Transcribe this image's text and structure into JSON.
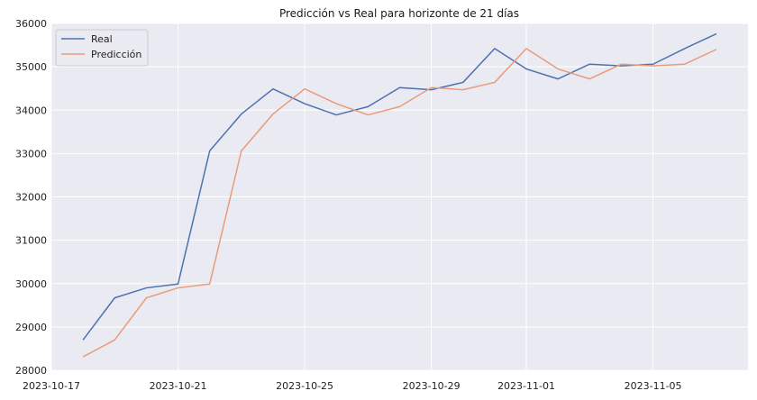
{
  "chart_data": {
    "type": "line",
    "title": "Predicción vs Real para horizonte de 21 días",
    "xlabel": "",
    "ylabel": "",
    "x": [
      "2023-10-18",
      "2023-10-19",
      "2023-10-20",
      "2023-10-21",
      "2023-10-22",
      "2023-10-23",
      "2023-10-24",
      "2023-10-25",
      "2023-10-26",
      "2023-10-27",
      "2023-10-28",
      "2023-10-29",
      "2023-10-30",
      "2023-10-31",
      "2023-11-01",
      "2023-11-02",
      "2023-11-03",
      "2023-11-04",
      "2023-11-05",
      "2023-11-06",
      "2023-11-07"
    ],
    "series": [
      {
        "name": "Real",
        "color": "#4c72b0",
        "values": [
          28700,
          29670,
          29900,
          29990,
          33060,
          33910,
          34490,
          34150,
          33890,
          34080,
          34520,
          34470,
          34640,
          35420,
          34950,
          34720,
          35060,
          35020,
          35060,
          35420,
          35760
        ]
      },
      {
        "name": "Predicción",
        "color": "#e99b7a",
        "values": [
          28310,
          28700,
          29670,
          29900,
          29990,
          33060,
          33910,
          34490,
          34150,
          33890,
          34080,
          34520,
          34470,
          34640,
          35420,
          34950,
          34720,
          35060,
          35020,
          35060,
          35400
        ]
      }
    ],
    "x_ticks": [
      "2023-10-17",
      "2023-10-21",
      "2023-10-25",
      "2023-10-29",
      "2023-11-01",
      "2023-11-05"
    ],
    "y_ticks": [
      28000,
      29000,
      30000,
      31000,
      32000,
      33000,
      34000,
      35000,
      36000
    ],
    "xlim": [
      "2023-10-17",
      "2023-11-08"
    ],
    "ylim": [
      28000,
      36000
    ],
    "grid": true,
    "legend": "top-left",
    "background_color": "#eaeaf2",
    "grid_color": "#ffffff"
  }
}
